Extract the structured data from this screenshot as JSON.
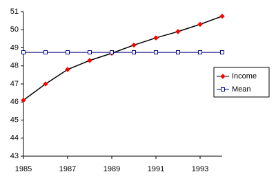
{
  "chart_data": {
    "type": "line",
    "x": [
      1985,
      1986,
      1987,
      1988,
      1989,
      1990,
      1991,
      1992,
      1993,
      1994
    ],
    "series": [
      {
        "name": "Income",
        "color": "#000000",
        "marker": "diamond",
        "marker_color": "#ff0000",
        "values": [
          46.1,
          47.0,
          47.8,
          48.3,
          48.7,
          49.15,
          49.55,
          49.9,
          50.3,
          50.75
        ]
      },
      {
        "name": "Mean",
        "color": "#000080",
        "marker": "square",
        "marker_color": "#ffffff",
        "values": [
          48.75,
          48.75,
          48.75,
          48.75,
          48.75,
          48.75,
          48.75,
          48.75,
          48.75,
          48.75
        ]
      }
    ],
    "xlim": [
      1985,
      1994
    ],
    "xticks": [
      1985,
      1987,
      1989,
      1991,
      1993
    ],
    "ylim": [
      43,
      51
    ],
    "yticks": [
      43,
      44,
      45,
      46,
      47,
      48,
      49,
      50,
      51
    ],
    "legend": "right"
  }
}
